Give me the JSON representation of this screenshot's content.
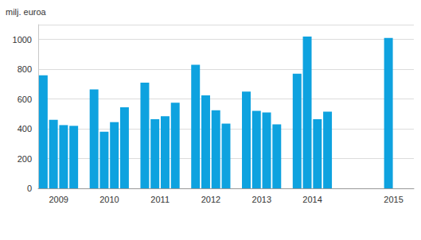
{
  "chart_data": {
    "type": "bar",
    "ylabel": "milj. euroa",
    "categories": [
      null,
      "2009",
      null,
      null,
      null,
      null,
      "2010",
      null,
      null,
      null,
      null,
      "2011",
      null,
      null,
      null,
      null,
      "2012",
      null,
      null,
      null,
      null,
      "2013",
      null,
      null,
      null,
      null,
      "2014",
      null,
      null,
      null,
      null,
      null,
      null,
      null,
      "2015",
      null,
      null
    ],
    "values": [
      760,
      460,
      425,
      420,
      null,
      665,
      380,
      445,
      545,
      null,
      710,
      465,
      485,
      575,
      null,
      830,
      625,
      525,
      435,
      null,
      650,
      520,
      510,
      430,
      null,
      770,
      1020,
      465,
      515,
      null,
      null,
      null,
      null,
      null,
      1010,
      null,
      null
    ],
    "color": "#0ea2df",
    "ylim": [
      0,
      1100
    ],
    "yticks": [
      0,
      200,
      400,
      600,
      800,
      1000
    ],
    "grid": true
  }
}
